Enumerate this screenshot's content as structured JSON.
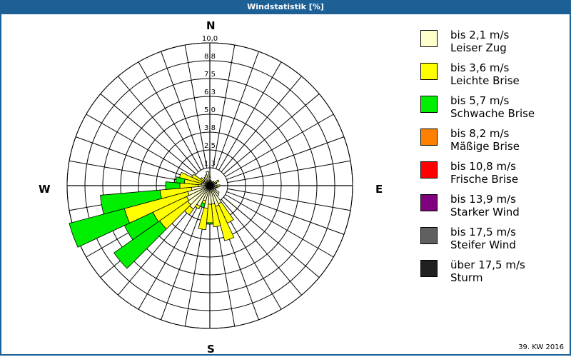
{
  "window": {
    "title": "Windstatistik [%]"
  },
  "footer": {
    "week": "39. KW 2016"
  },
  "compass": {
    "n": "N",
    "e": "E",
    "s": "S",
    "w": "W"
  },
  "legend": [
    {
      "range": "bis 2,1 m/s",
      "name": "Leiser Zug",
      "color": "#ffffcc"
    },
    {
      "range": "bis 3,6 m/s",
      "name": "Leichte Brise",
      "color": "#ffff00"
    },
    {
      "range": "bis 5,7 m/s",
      "name": "Schwache Brise",
      "color": "#00ee00"
    },
    {
      "range": "bis 8,2 m/s",
      "name": "Mäßige Brise",
      "color": "#ff8000"
    },
    {
      "range": "bis 10,8 m/s",
      "name": "Frische Brise",
      "color": "#ff0000"
    },
    {
      "range": "bis 13,9 m/s",
      "name": "Starker Wind",
      "color": "#800080"
    },
    {
      "range": "bis 17,5 m/s",
      "name": "Steifer Wind",
      "color": "#606060"
    },
    {
      "range": "über 17,5 m/s",
      "name": "Sturm",
      "color": "#202020"
    }
  ],
  "chart_data": {
    "type": "polar-bar (wind rose)",
    "title": "Windstatistik [%]",
    "subtitle": "39. KW 2016",
    "radial_ticks": [
      "1,3",
      "2,5",
      "3,8",
      "5,0",
      "6,3",
      "7,5",
      "8,8",
      "10,0"
    ],
    "rmax": 10.0,
    "sector_width_deg": 10,
    "legend_position": "right",
    "series_order": [
      "Leiser Zug",
      "Leichte Brise",
      "Schwache Brise"
    ],
    "sectors": [
      {
        "dir": 0,
        "values": [
          0.6,
          0,
          0
        ]
      },
      {
        "dir": 10,
        "values": [
          0.4,
          0,
          0
        ]
      },
      {
        "dir": 20,
        "values": [
          0.3,
          0,
          0
        ]
      },
      {
        "dir": 30,
        "values": [
          0.3,
          0,
          0
        ]
      },
      {
        "dir": 40,
        "values": [
          0.4,
          0,
          0
        ]
      },
      {
        "dir": 60,
        "values": [
          0.3,
          0.4,
          0
        ]
      },
      {
        "dir": 70,
        "values": [
          0.4,
          0.1,
          0
        ]
      },
      {
        "dir": 80,
        "values": [
          0.3,
          0,
          0
        ]
      },
      {
        "dir": 90,
        "values": [
          0.5,
          0.2,
          0
        ]
      },
      {
        "dir": 100,
        "values": [
          0.5,
          0.1,
          0
        ]
      },
      {
        "dir": 110,
        "values": [
          0.4,
          0,
          0
        ]
      },
      {
        "dir": 120,
        "values": [
          0.5,
          0,
          0
        ]
      },
      {
        "dir": 130,
        "values": [
          0.8,
          0,
          0
        ]
      },
      {
        "dir": 140,
        "values": [
          0.9,
          0,
          0
        ]
      },
      {
        "dir": 150,
        "values": [
          1.4,
          1.5,
          0
        ]
      },
      {
        "dir": 160,
        "values": [
          1.5,
          2.5,
          0
        ]
      },
      {
        "dir": 170,
        "values": [
          1.3,
          1.6,
          0
        ]
      },
      {
        "dir": 180,
        "values": [
          1.3,
          1.3,
          0.1
        ]
      },
      {
        "dir": 190,
        "values": [
          1.6,
          1.5,
          0
        ]
      },
      {
        "dir": 200,
        "values": [
          1.1,
          0.2,
          0.3
        ]
      },
      {
        "dir": 210,
        "values": [
          1.6,
          0.2,
          0
        ]
      },
      {
        "dir": 220,
        "values": [
          2.0,
          0.5,
          0
        ]
      },
      {
        "dir": 230,
        "values": [
          1.9,
          2.4,
          3.9
        ]
      },
      {
        "dir": 240,
        "values": [
          1.8,
          2.6,
          2.2
        ]
      },
      {
        "dir": 250,
        "values": [
          1.6,
          4.6,
          4.0
        ]
      },
      {
        "dir": 260,
        "values": [
          1.3,
          2.2,
          4.2
        ]
      },
      {
        "dir": 270,
        "values": [
          0.8,
          1.3,
          1.0
        ]
      },
      {
        "dir": 280,
        "values": [
          0.6,
          1.2,
          0.6
        ]
      },
      {
        "dir": 290,
        "values": [
          0.6,
          1.6,
          0
        ]
      },
      {
        "dir": 300,
        "values": [
          0.5,
          0.9,
          0
        ]
      },
      {
        "dir": 310,
        "values": [
          0.5,
          0.3,
          0
        ]
      },
      {
        "dir": 320,
        "values": [
          0.6,
          0,
          0
        ]
      },
      {
        "dir": 330,
        "values": [
          0.7,
          0,
          0
        ]
      },
      {
        "dir": 340,
        "values": [
          0.8,
          0,
          0
        ]
      },
      {
        "dir": 350,
        "values": [
          1.0,
          0,
          0
        ]
      }
    ]
  }
}
